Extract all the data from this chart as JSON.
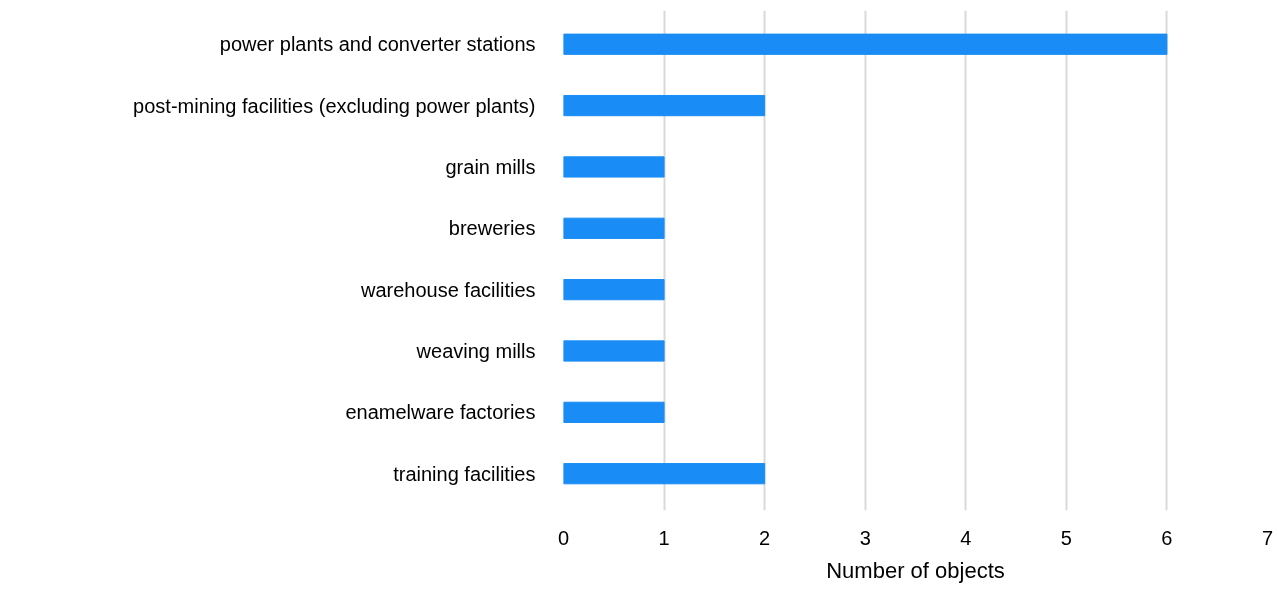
{
  "chart_data": {
    "type": "bar",
    "orientation": "horizontal",
    "xlabel": "Number of objects",
    "categories": [
      "power plants and converter stations",
      "post-mining facilities (excluding power plants)",
      "grain mills",
      "breweries",
      "warehouse facilities",
      "weaving mills",
      "enamelware factories",
      "training facilities"
    ],
    "values": [
      6,
      2,
      1,
      1,
      1,
      1,
      1,
      2
    ],
    "color": "#1a8cf5",
    "xlim": [
      0,
      7
    ],
    "xticks": [
      0,
      1,
      2,
      3,
      4,
      5,
      6,
      7
    ],
    "grid": "x"
  }
}
